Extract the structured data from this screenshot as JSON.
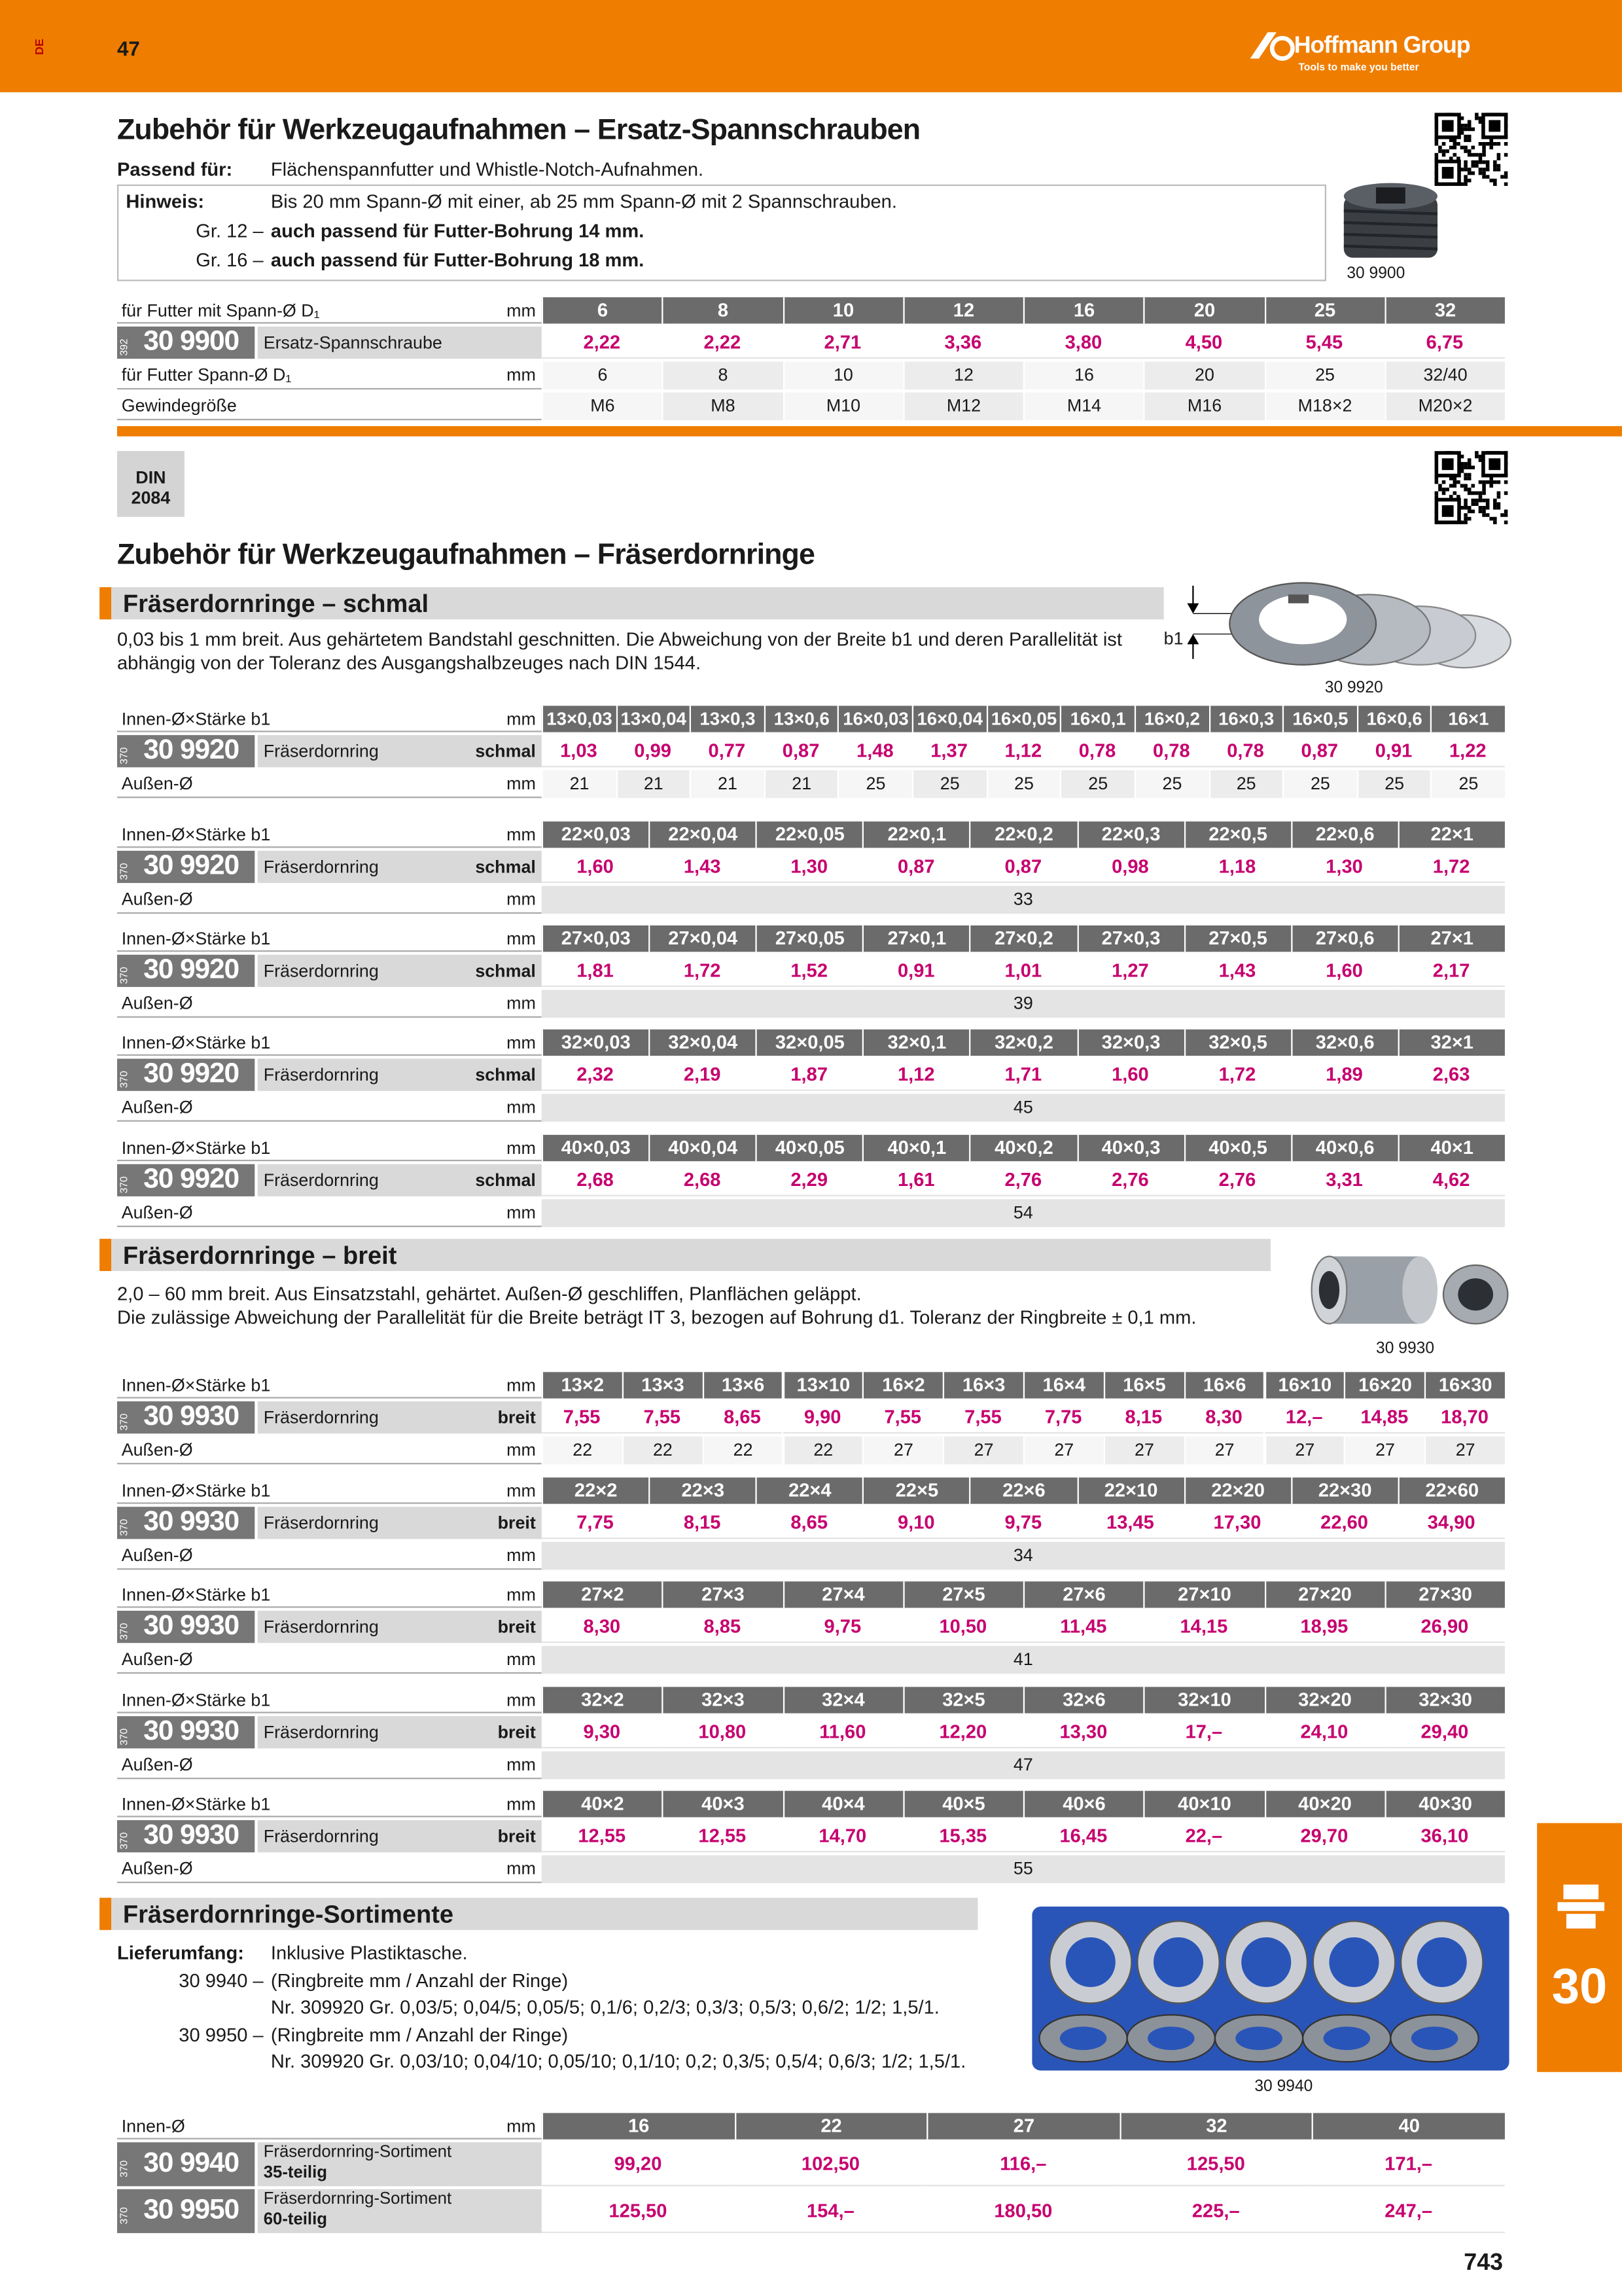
{
  "header": {
    "side_code": "DE",
    "page_number": "47",
    "brand": "Hoffmann Group",
    "tagline": "Tools to make you better"
  },
  "spannschrauben": {
    "title": "Zubehör für Werkzeugaufnahmen – Ersatz-Spannschrauben",
    "notes": [
      {
        "label": "Passend für:",
        "text": "Flächenspannfutter und Whistle-Notch-Aufnahmen."
      },
      {
        "label": "Hinweis:",
        "text": "Bis 20 mm Spann-Ø mit einer, ab 25 mm Spann-Ø mit 2 Spannschrauben."
      },
      {
        "label": "Gr. 12 –",
        "text": "auch passend für Futter-Bohrung 14 mm."
      },
      {
        "label": "Gr. 16 –",
        "text": "auch passend für Futter-Bohrung 18 mm."
      }
    ],
    "image_caption": "30 9900",
    "tables": [
      {
        "rows": [
          {
            "kind": "head",
            "label": "für Futter mit Spann-Ø D₁",
            "unit": "mm",
            "cells": [
              "6",
              "8",
              "10",
              "12",
              "16",
              "20",
              "25",
              "32"
            ]
          },
          {
            "kind": "price",
            "prefix": "392",
            "code": "30 9900",
            "label": "Ersatz-Spannschraube",
            "cells": [
              "2,22",
              "2,22",
              "2,71",
              "3,36",
              "3,80",
              "4,50",
              "5,45",
              "6,75"
            ]
          },
          {
            "kind": "plain",
            "label": "für Futter Spann-Ø D₁",
            "unit": "mm",
            "cells": [
              "6",
              "8",
              "10",
              "12",
              "16",
              "20",
              "25",
              "32/40"
            ]
          },
          {
            "kind": "plain",
            "label": "Gewindegröße",
            "cells": [
              "M6",
              "M8",
              "M10",
              "M12",
              "M14",
              "M16",
              "M18×2",
              "M20×2"
            ]
          }
        ]
      }
    ]
  },
  "fraeserdornringe": {
    "din": [
      "DIN",
      "2084"
    ],
    "title": "Zubehör für Werkzeugaufnahmen – Fräserdornringe",
    "groups": [
      {
        "heading": "Fräserdornringe – schmal",
        "description": [
          "0,03 bis 1 mm breit. Aus gehärtetem Bandstahl geschnitten. Die Abweichung von der Breite b1 und deren Parallelität ist",
          "abhängig von der Toleranz des Ausgangshalbzeuges nach DIN 1544."
        ],
        "image_label": "b1",
        "image_caption": "30 9920",
        "tables": [
          {
            "rows": [
              {
                "kind": "head",
                "label": "Innen-Ø×Stärke b1",
                "unit": "mm",
                "cells": [
                  "13×0,03",
                  "13×0,04",
                  "13×0,3",
                  "13×0,6",
                  "16×0,03",
                  "16×0,04",
                  "16×0,05",
                  "16×0,1",
                  "16×0,2",
                  "16×0,3",
                  "16×0,5",
                  "16×0,6",
                  "16×1"
                ]
              },
              {
                "kind": "price",
                "prefix": "370",
                "code": "30 9920",
                "label": "Fräserdornring",
                "variant": "schmal",
                "cells": [
                  "1,03",
                  "0,99",
                  "0,77",
                  "0,87",
                  "1,48",
                  "1,37",
                  "1,12",
                  "0,78",
                  "0,78",
                  "0,78",
                  "0,87",
                  "0,91",
                  "1,22"
                ]
              },
              {
                "kind": "plain",
                "label": "Außen-Ø",
                "unit": "mm",
                "cells": [
                  "21",
                  "21",
                  "21",
                  "21",
                  "25",
                  "25",
                  "25",
                  "25",
                  "25",
                  "25",
                  "25",
                  "25",
                  "25"
                ]
              }
            ]
          },
          {
            "rows": [
              {
                "kind": "head",
                "label": "Innen-Ø×Stärke b1",
                "unit": "mm",
                "cells": [
                  "22×0,03",
                  "22×0,04",
                  "22×0,05",
                  "22×0,1",
                  "22×0,2",
                  "22×0,3",
                  "22×0,5",
                  "22×0,6",
                  "22×1"
                ]
              },
              {
                "kind": "price",
                "prefix": "370",
                "code": "30 9920",
                "label": "Fräserdornring",
                "variant": "schmal",
                "cells": [
                  "1,60",
                  "1,43",
                  "1,30",
                  "0,87",
                  "0,87",
                  "0,98",
                  "1,18",
                  "1,30",
                  "1,72"
                ]
              },
              {
                "kind": "plain",
                "label": "Außen-Ø",
                "unit": "mm",
                "cells": [
                  "33"
                ]
              }
            ]
          },
          {
            "rows": [
              {
                "kind": "head",
                "label": "Innen-Ø×Stärke b1",
                "unit": "mm",
                "cells": [
                  "27×0,03",
                  "27×0,04",
                  "27×0,05",
                  "27×0,1",
                  "27×0,2",
                  "27×0,3",
                  "27×0,5",
                  "27×0,6",
                  "27×1"
                ]
              },
              {
                "kind": "price",
                "prefix": "370",
                "code": "30 9920",
                "label": "Fräserdornring",
                "variant": "schmal",
                "cells": [
                  "1,81",
                  "1,72",
                  "1,52",
                  "0,91",
                  "1,01",
                  "1,27",
                  "1,43",
                  "1,60",
                  "2,17"
                ]
              },
              {
                "kind": "plain",
                "label": "Außen-Ø",
                "unit": "mm",
                "cells": [
                  "39"
                ]
              }
            ]
          },
          {
            "rows": [
              {
                "kind": "head",
                "label": "Innen-Ø×Stärke b1",
                "unit": "mm",
                "cells": [
                  "32×0,03",
                  "32×0,04",
                  "32×0,05",
                  "32×0,1",
                  "32×0,2",
                  "32×0,3",
                  "32×0,5",
                  "32×0,6",
                  "32×1"
                ]
              },
              {
                "kind": "price",
                "prefix": "370",
                "code": "30 9920",
                "label": "Fräserdornring",
                "variant": "schmal",
                "cells": [
                  "2,32",
                  "2,19",
                  "1,87",
                  "1,12",
                  "1,71",
                  "1,60",
                  "1,72",
                  "1,89",
                  "2,63"
                ]
              },
              {
                "kind": "plain",
                "label": "Außen-Ø",
                "unit": "mm",
                "cells": [
                  "45"
                ]
              }
            ]
          },
          {
            "rows": [
              {
                "kind": "head",
                "label": "Innen-Ø×Stärke b1",
                "unit": "mm",
                "cells": [
                  "40×0,03",
                  "40×0,04",
                  "40×0,05",
                  "40×0,1",
                  "40×0,2",
                  "40×0,3",
                  "40×0,5",
                  "40×0,6",
                  "40×1"
                ]
              },
              {
                "kind": "price",
                "prefix": "370",
                "code": "30 9920",
                "label": "Fräserdornring",
                "variant": "schmal",
                "cells": [
                  "2,68",
                  "2,68",
                  "2,29",
                  "1,61",
                  "2,76",
                  "2,76",
                  "2,76",
                  "3,31",
                  "4,62"
                ]
              },
              {
                "kind": "plain",
                "label": "Außen-Ø",
                "unit": "mm",
                "cells": [
                  "54"
                ]
              }
            ]
          }
        ]
      },
      {
        "heading": "Fräserdornringe – breit",
        "description": [
          "2,0 – 60 mm breit. Aus Einsatzstahl, gehärtet. Außen-Ø geschliffen, Planflächen geläppt.",
          "Die zulässige Abweichung der Parallelität für die Breite beträgt IT 3, bezogen auf Bohrung d1. Toleranz der Ringbreite ± 0,1 mm."
        ],
        "image_caption": "30 9930",
        "tables": [
          {
            "rows": [
              {
                "kind": "head",
                "label": "Innen-Ø×Stärke b1",
                "unit": "mm",
                "cells": [
                  "13×2",
                  "13×3",
                  "13×6",
                  "13×10",
                  "16×2",
                  "16×3",
                  "16×4",
                  "16×5",
                  "16×6",
                  "16×10",
                  "16×20",
                  "16×30"
                ]
              },
              {
                "kind": "price",
                "prefix": "370",
                "code": "30 9930",
                "label": "Fräserdornring",
                "variant": "breit",
                "cells": [
                  "7,55",
                  "7,55",
                  "8,65",
                  "9,90",
                  "7,55",
                  "7,55",
                  "7,75",
                  "8,15",
                  "8,30",
                  "12,–",
                  "14,85",
                  "18,70"
                ]
              },
              {
                "kind": "plain",
                "label": "Außen-Ø",
                "unit": "mm",
                "cells": [
                  "22",
                  "22",
                  "22",
                  "22",
                  "27",
                  "27",
                  "27",
                  "27",
                  "27",
                  "27",
                  "27",
                  "27"
                ]
              }
            ]
          },
          {
            "rows": [
              {
                "kind": "head",
                "label": "Innen-Ø×Stärke b1",
                "unit": "mm",
                "cells": [
                  "22×2",
                  "22×3",
                  "22×4",
                  "22×5",
                  "22×6",
                  "22×10",
                  "22×20",
                  "22×30",
                  "22×60"
                ]
              },
              {
                "kind": "price",
                "prefix": "370",
                "code": "30 9930",
                "label": "Fräserdornring",
                "variant": "breit",
                "cells": [
                  "7,75",
                  "8,15",
                  "8,65",
                  "9,10",
                  "9,75",
                  "13,45",
                  "17,30",
                  "22,60",
                  "34,90"
                ]
              },
              {
                "kind": "plain",
                "label": "Außen-Ø",
                "unit": "mm",
                "cells": [
                  "34"
                ]
              }
            ]
          },
          {
            "rows": [
              {
                "kind": "head",
                "label": "Innen-Ø×Stärke b1",
                "unit": "mm",
                "cells": [
                  "27×2",
                  "27×3",
                  "27×4",
                  "27×5",
                  "27×6",
                  "27×10",
                  "27×20",
                  "27×30"
                ]
              },
              {
                "kind": "price",
                "prefix": "370",
                "code": "30 9930",
                "label": "Fräserdornring",
                "variant": "breit",
                "cells": [
                  "8,30",
                  "8,85",
                  "9,75",
                  "10,50",
                  "11,45",
                  "14,15",
                  "18,95",
                  "26,90"
                ]
              },
              {
                "kind": "plain",
                "label": "Außen-Ø",
                "unit": "mm",
                "cells": [
                  "41"
                ]
              }
            ]
          },
          {
            "rows": [
              {
                "kind": "head",
                "label": "Innen-Ø×Stärke b1",
                "unit": "mm",
                "cells": [
                  "32×2",
                  "32×3",
                  "32×4",
                  "32×5",
                  "32×6",
                  "32×10",
                  "32×20",
                  "32×30"
                ]
              },
              {
                "kind": "price",
                "prefix": "370",
                "code": "30 9930",
                "label": "Fräserdornring",
                "variant": "breit",
                "cells": [
                  "9,30",
                  "10,80",
                  "11,60",
                  "12,20",
                  "13,30",
                  "17,–",
                  "24,10",
                  "29,40"
                ]
              },
              {
                "kind": "plain",
                "label": "Außen-Ø",
                "unit": "mm",
                "cells": [
                  "47"
                ]
              }
            ]
          },
          {
            "rows": [
              {
                "kind": "head",
                "label": "Innen-Ø×Stärke b1",
                "unit": "mm",
                "cells": [
                  "40×2",
                  "40×3",
                  "40×4",
                  "40×5",
                  "40×6",
                  "40×10",
                  "40×20",
                  "40×30"
                ]
              },
              {
                "kind": "price",
                "prefix": "370",
                "code": "30 9930",
                "label": "Fräserdornring",
                "variant": "breit",
                "cells": [
                  "12,55",
                  "12,55",
                  "14,70",
                  "15,35",
                  "16,45",
                  "22,–",
                  "29,70",
                  "36,10"
                ]
              },
              {
                "kind": "plain",
                "label": "Außen-Ø",
                "unit": "mm",
                "cells": [
                  "55"
                ]
              }
            ]
          }
        ]
      },
      {
        "heading": "Fräserdornringe-Sortimente",
        "details": [
          {
            "label": "Lieferumfang:",
            "lines": [
              "Inklusive Plastiktasche."
            ]
          },
          {
            "label": "30 9940 –",
            "lines": [
              "(Ringbreite mm / Anzahl der Ringe)",
              "Nr. 309920 Gr. 0,03/5; 0,04/5; 0,05/5; 0,1/6; 0,2/3; 0,3/3; 0,5/3; 0,6/2; 1/2; 1,5/1."
            ]
          },
          {
            "label": "30 9950 –",
            "lines": [
              "(Ringbreite mm / Anzahl der Ringe)",
              "Nr. 309920 Gr. 0,03/10; 0,04/10; 0,05/10; 0,1/10; 0,2; 0,3/5; 0,5/4; 0,6/3; 1/2; 1,5/1."
            ]
          }
        ],
        "image_caption": "30 9940",
        "tables": [
          {
            "rows": [
              {
                "kind": "head",
                "label": "Innen-Ø",
                "unit": "mm",
                "cells": [
                  "16",
                  "22",
                  "27",
                  "32",
                  "40"
                ]
              },
              {
                "kind": "price2",
                "prefix": "370",
                "code": "30 9940",
                "label": "Fräserdornring-Sortiment",
                "variant": "35-teilig",
                "cells": [
                  "99,20",
                  "102,50",
                  "116,–",
                  "125,50",
                  "171,–"
                ]
              },
              {
                "kind": "price2",
                "prefix": "370",
                "code": "30 9950",
                "label": "Fräserdornring-Sortiment",
                "variant": "60-teilig",
                "cells": [
                  "125,50",
                  "154,–",
                  "180,50",
                  "225,–",
                  "247,–"
                ]
              }
            ]
          }
        ]
      }
    ]
  },
  "footer": {
    "page_number": "743",
    "section_tab": "30"
  }
}
